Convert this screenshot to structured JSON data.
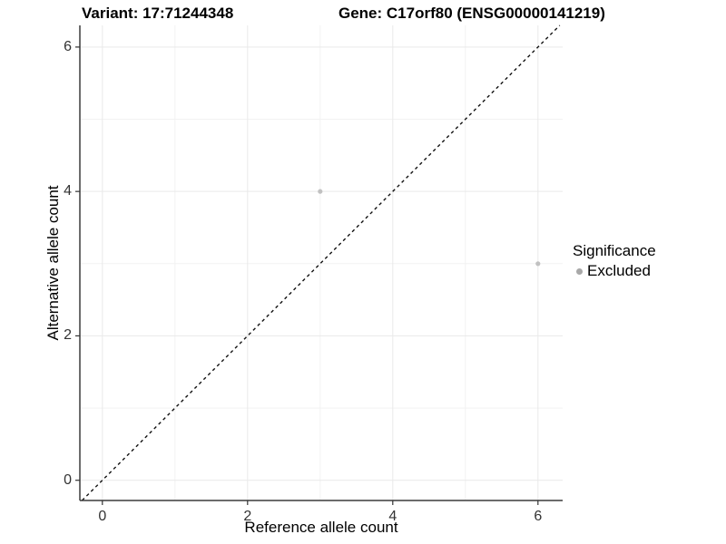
{
  "titles": {
    "variant": "Variant: 17:71244348",
    "gene": "Gene: C17orf80 (ENSG00000141219)"
  },
  "chart_data": {
    "type": "scatter",
    "xlabel": "Reference allele count",
    "ylabel": "Alternative allele count",
    "xlim": [
      -0.31,
      6.34
    ],
    "ylim": [
      -0.28,
      6.3
    ],
    "x_ticks": [
      0,
      2,
      4,
      6
    ],
    "y_ticks": [
      0,
      2,
      4,
      6
    ],
    "x_minor_ticks": [
      1,
      3,
      5
    ],
    "y_minor_ticks": [
      1,
      3,
      5
    ],
    "grid": true,
    "legend_position": "right",
    "series": [
      {
        "name": "Excluded",
        "points": [
          {
            "x": 3,
            "y": 4
          },
          {
            "x": 6,
            "y": 3
          }
        ],
        "color": "#c1c1c1"
      }
    ],
    "identity_line": {
      "slope": 1,
      "intercept": 0,
      "style": "dashed",
      "color": "#111111"
    }
  },
  "legend": {
    "title": "Significance",
    "items": [
      {
        "label": "Excluded",
        "color": "#a8a8a8",
        "marker": "circle-icon"
      }
    ]
  },
  "colors": {
    "axis_line": "#3c3c3c",
    "tick_mark": "#333333",
    "tick_label": "#333333",
    "grid_major": "#e9e9e9",
    "grid_minor": "#f2f2f2",
    "background": "#ffffff"
  }
}
